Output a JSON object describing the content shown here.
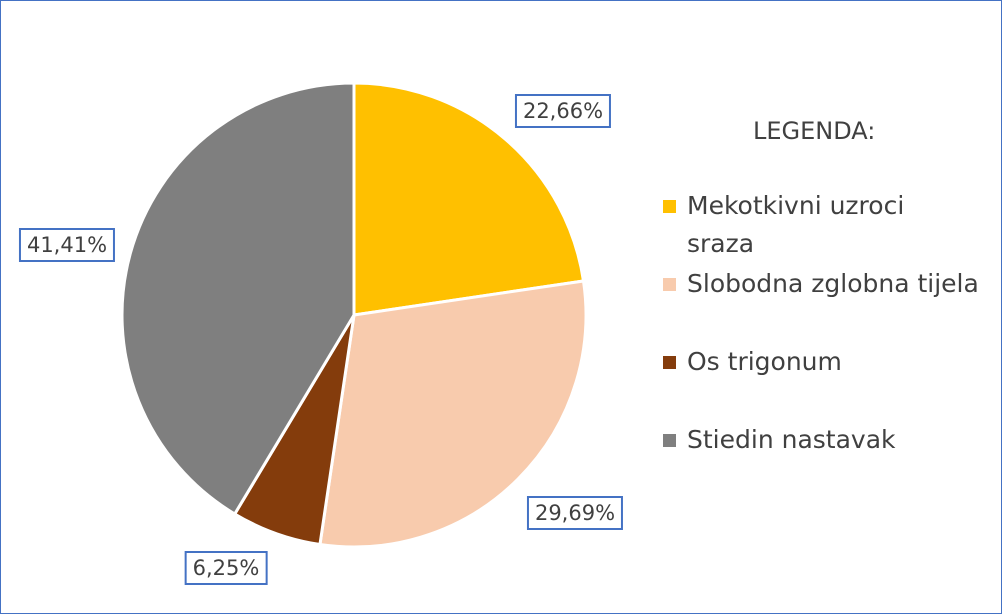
{
  "chart_data": {
    "type": "pie",
    "legend_title": "LEGENDA:",
    "categories": [
      "Mekotkivni uzroci sraza",
      "Slobodna zglobna tijela",
      "Os trigonum",
      "Stiedin nastavak"
    ],
    "values": [
      22.66,
      29.69,
      6.25,
      41.41
    ],
    "value_labels": [
      "22,66%",
      "29,69%",
      "6,25%",
      "41,41%"
    ],
    "colors": [
      "#ffc000",
      "#f8cbad",
      "#843c0c",
      "#7f7f7f"
    ],
    "legend": "right"
  }
}
